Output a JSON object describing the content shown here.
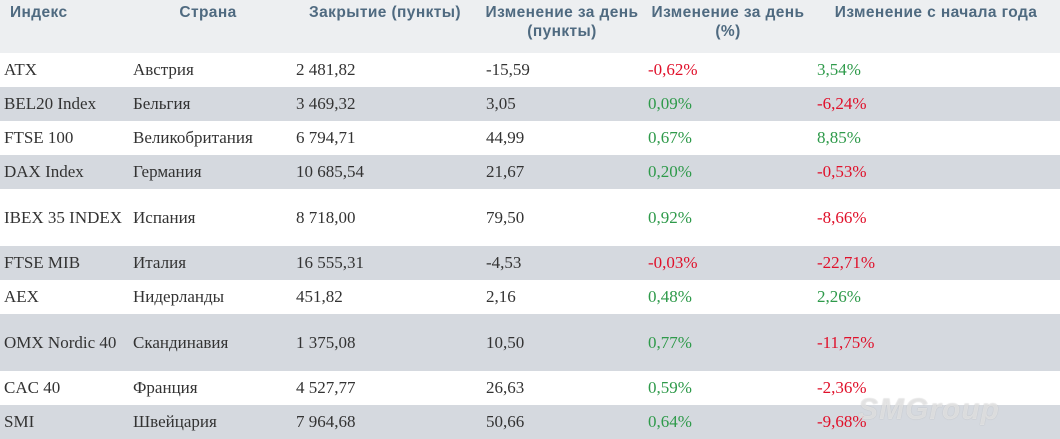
{
  "table": {
    "headers": [
      "Индекс",
      "Страна",
      "Закрытие (пункты)",
      "Изменение за день (пункты)",
      "Изменение за день (%)",
      "Изменение с начала года"
    ],
    "rows": [
      {
        "index": "ATX",
        "country": "Австрия",
        "close": "2 481,82",
        "change_pts": "-15,59",
        "change_pct": "-0,62%",
        "ytd": "3,54%"
      },
      {
        "index": "BEL20 Index",
        "country": "Бельгия",
        "close": "3 469,32",
        "change_pts": "3,05",
        "change_pct": "0,09%",
        "ytd": "-6,24%"
      },
      {
        "index": "FTSE 100",
        "country": "Великобритания",
        "close": "6 794,71",
        "change_pts": "44,99",
        "change_pct": "0,67%",
        "ytd": "8,85%"
      },
      {
        "index": "DAX Index",
        "country": "Германия",
        "close": "10 685,54",
        "change_pts": "21,67",
        "change_pct": "0,20%",
        "ytd": "-0,53%"
      },
      {
        "index": "IBEX 35 INDEX",
        "country": "Испания",
        "close": "8 718,00",
        "change_pts": "79,50",
        "change_pct": "0,92%",
        "ytd": "-8,66%"
      },
      {
        "index": "FTSE MIB",
        "country": "Италия",
        "close": "16 555,31",
        "change_pts": "-4,53",
        "change_pct": "-0,03%",
        "ytd": "-22,71%"
      },
      {
        "index": " AEX",
        "country": "Нидерланды",
        "close": "451,82",
        "change_pts": "2,16",
        "change_pct": "0,48%",
        "ytd": "2,26%"
      },
      {
        "index": "OMX Nordic 40",
        "country": "Скандинавия",
        "close": "1 375,08",
        "change_pts": "10,50",
        "change_pct": "0,77%",
        "ytd": "-11,75%"
      },
      {
        "index": "CAC 40",
        "country": "Франция",
        "close": "4 527,77",
        "change_pts": "26,63",
        "change_pct": "0,59%",
        "ytd": "-2,36%"
      },
      {
        "index": "SMI",
        "country": "Швейцария",
        "close": "7 964,68",
        "change_pts": "50,66",
        "change_pct": "0,64%",
        "ytd": "-9,68%"
      }
    ]
  },
  "watermark": "SMGroup",
  "colors": {
    "header_bg": "#edeff1",
    "header_text": "#4f6a80",
    "row_alt_bg": "#d5d9df",
    "positive": "#2e9a4a",
    "negative": "#e0102a"
  }
}
